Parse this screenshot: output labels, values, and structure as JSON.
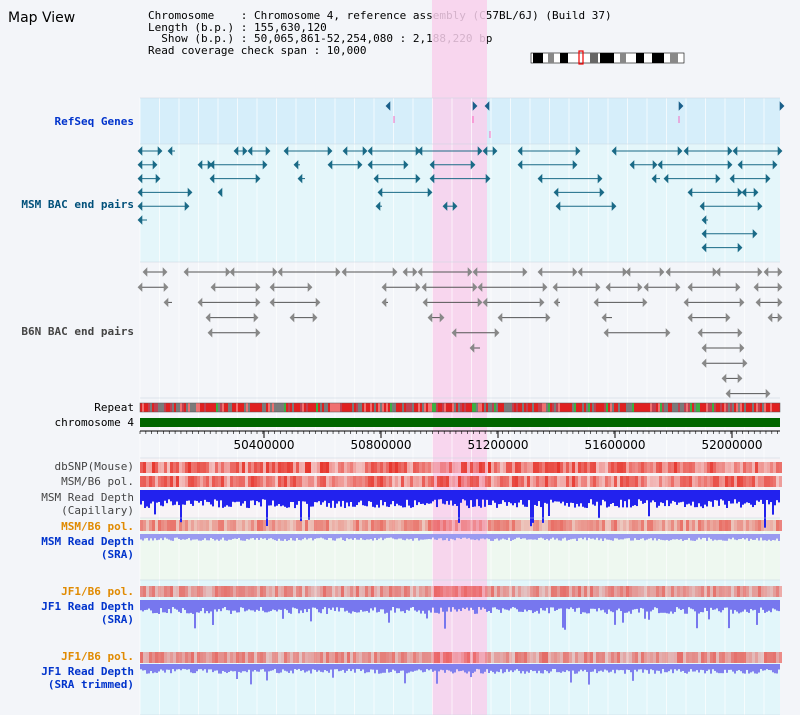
{
  "header": {
    "title": "Map View",
    "info_lines": [
      "Chromosome    : Chromosome 4, reference assembly (C57BL/6J) (Build 37)",
      "Length (b.p.) : 155,630,120",
      "  Show (b.p.) : 50,065,861-52,254,080 : 2,188,220 bp",
      "Read coverage check span : 10,000"
    ]
  },
  "tracks": {
    "refseq": "RefSeq Genes",
    "msm_bac": "MSM BAC end pairs",
    "b6n_bac": "B6N BAC end pairs",
    "repeat": "Repeat",
    "chromosome": "chromosome 4",
    "dbsnp": "dbSNP(Mouse)",
    "msm_b6_pol_1": "MSM/B6 pol.",
    "msm_read_depth_cap": "MSM Read Depth\n(Capillary)",
    "msm_b6_pol_2": "MSM/B6 pol.",
    "msm_read_depth_sra": "MSM Read Depth\n(SRA)",
    "jf1_b6_pol_1": "JF1/B6 pol.",
    "jf1_read_depth_sra": "JF1 Read Depth\n(SRA)",
    "jf1_b6_pol_2": "JF1/B6 pol.",
    "jf1_read_depth_trim": "JF1 Read Depth\n(SRA trimmed)"
  },
  "axis": {
    "ticks": [
      "50400000",
      "50800000",
      "51200000",
      "51600000",
      "52000000"
    ]
  },
  "colors": {
    "highlight": "#f8d0ec",
    "refseq_bg": "#d6eefa",
    "msm_bac_bg": "#e4f6fa",
    "teal": "#1a6a86",
    "gray_line": "#555555",
    "chrom": "#006600",
    "depth_blue": "#2222ee",
    "depth_light": "#7777ee"
  }
}
